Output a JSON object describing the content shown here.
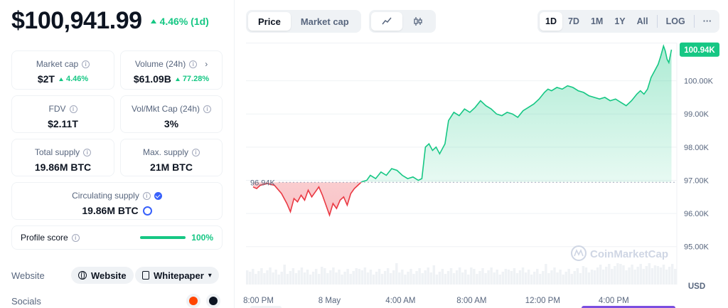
{
  "header": {
    "price": "$100,941.99",
    "change": "4.46% (1d)"
  },
  "stats": {
    "market_cap": {
      "label": "Market cap",
      "value": "$2T",
      "change": "4.46%"
    },
    "volume": {
      "label": "Volume (24h)",
      "value": "$61.09B",
      "change": "77.28%"
    },
    "fdv": {
      "label": "FDV",
      "value": "$2.11T"
    },
    "vol_mkt_cap": {
      "label": "Vol/Mkt Cap (24h)",
      "value": "3%"
    },
    "total_supply": {
      "label": "Total supply",
      "value": "19.86M BTC"
    },
    "max_supply": {
      "label": "Max. supply",
      "value": "21M BTC"
    },
    "circulating_supply": {
      "label": "Circulating supply",
      "value": "19.86M BTC"
    }
  },
  "profile_score": {
    "label": "Profile score",
    "value": "100%",
    "fraction": 1.0
  },
  "links": {
    "website_label": "Website",
    "website_button": "Website",
    "whitepaper_button": "Whitepaper",
    "socials_label": "Socials",
    "social_icons": [
      "reddit-icon",
      "github-icon"
    ]
  },
  "toolbar": {
    "view_tabs": [
      {
        "label": "Price",
        "active": true
      },
      {
        "label": "Market cap",
        "active": false
      }
    ],
    "chart_type_icons": [
      "line-chart-icon",
      "candlestick-icon"
    ],
    "ranges": [
      "1D",
      "7D",
      "1M",
      "1Y",
      "All"
    ],
    "active_range": "1D",
    "log_label": "LOG",
    "more_label": "···"
  },
  "colors": {
    "up": "#16c784",
    "down": "#ea3943",
    "accent": "#3861fb",
    "text_secondary": "#58667e"
  },
  "chart_data": {
    "type": "area",
    "currency_label": "USD",
    "watermark": "CoinMarketCap",
    "baseline": {
      "value": 96940,
      "label": "96.94K"
    },
    "current": {
      "value": 100940,
      "label": "100.94K"
    },
    "ylim": [
      94500,
      101150
    ],
    "y_ticks": [
      {
        "value": 95000,
        "label": "95.00K"
      },
      {
        "value": 96000,
        "label": "96.00K"
      },
      {
        "value": 97000,
        "label": "97.00K"
      },
      {
        "value": 98000,
        "label": "98.00K"
      },
      {
        "value": 99000,
        "label": "99.00K"
      },
      {
        "value": 100000,
        "label": "100.00K"
      }
    ],
    "x_ticks": [
      {
        "t": 0.7,
        "label": "8:00 PM"
      },
      {
        "t": 4.7,
        "label": "8 May"
      },
      {
        "t": 8.7,
        "label": "4:00 AM"
      },
      {
        "t": 12.7,
        "label": "8:00 AM"
      },
      {
        "t": 16.7,
        "label": "12:00 PM"
      },
      {
        "t": 20.7,
        "label": "4:00 PM"
      }
    ],
    "x_range_hours": [
      0,
      24.25
    ],
    "series": [
      {
        "points": [
          [
            0.4,
            96800
          ],
          [
            0.6,
            96750
          ],
          [
            0.8,
            96850
          ],
          [
            1.2,
            96900
          ],
          [
            1.6,
            96850
          ],
          [
            2.0,
            96600
          ],
          [
            2.3,
            96300
          ],
          [
            2.5,
            96050
          ],
          [
            2.7,
            96450
          ],
          [
            2.9,
            96350
          ],
          [
            3.1,
            96550
          ],
          [
            3.3,
            96400
          ],
          [
            3.5,
            96700
          ],
          [
            3.7,
            96500
          ],
          [
            3.9,
            96650
          ],
          [
            4.1,
            96800
          ],
          [
            4.3,
            96550
          ],
          [
            4.5,
            96250
          ],
          [
            4.7,
            95950
          ],
          [
            4.9,
            96300
          ],
          [
            5.1,
            96150
          ],
          [
            5.3,
            96400
          ],
          [
            5.5,
            96500
          ],
          [
            5.7,
            96250
          ],
          [
            5.9,
            96600
          ],
          [
            6.1,
            96750
          ],
          [
            6.3,
            96850
          ],
          [
            6.5,
            96950
          ],
          [
            6.8,
            97000
          ],
          [
            7.0,
            97150
          ],
          [
            7.3,
            97050
          ],
          [
            7.6,
            97250
          ],
          [
            7.9,
            97150
          ],
          [
            8.2,
            97350
          ],
          [
            8.5,
            97300
          ],
          [
            8.8,
            97150
          ],
          [
            9.1,
            97050
          ],
          [
            9.4,
            97100
          ],
          [
            9.7,
            97000
          ],
          [
            9.9,
            97050
          ],
          [
            10.1,
            98000
          ],
          [
            10.3,
            98100
          ],
          [
            10.5,
            97900
          ],
          [
            10.7,
            98000
          ],
          [
            10.9,
            97800
          ],
          [
            11.2,
            98100
          ],
          [
            11.4,
            98800
          ],
          [
            11.7,
            99050
          ],
          [
            12.0,
            98950
          ],
          [
            12.3,
            99150
          ],
          [
            12.6,
            99050
          ],
          [
            12.9,
            99200
          ],
          [
            13.2,
            99400
          ],
          [
            13.5,
            99250
          ],
          [
            13.8,
            99150
          ],
          [
            14.1,
            99000
          ],
          [
            14.4,
            98950
          ],
          [
            14.7,
            99050
          ],
          [
            15.0,
            99000
          ],
          [
            15.3,
            98900
          ],
          [
            15.6,
            99100
          ],
          [
            15.9,
            99200
          ],
          [
            16.2,
            99300
          ],
          [
            16.5,
            99450
          ],
          [
            16.8,
            99650
          ],
          [
            17.0,
            99750
          ],
          [
            17.2,
            99700
          ],
          [
            17.5,
            99800
          ],
          [
            17.8,
            99750
          ],
          [
            18.1,
            99850
          ],
          [
            18.4,
            99800
          ],
          [
            18.7,
            99700
          ],
          [
            19.0,
            99650
          ],
          [
            19.3,
            99550
          ],
          [
            19.6,
            99500
          ],
          [
            19.9,
            99450
          ],
          [
            20.2,
            99500
          ],
          [
            20.5,
            99400
          ],
          [
            20.8,
            99450
          ],
          [
            21.1,
            99350
          ],
          [
            21.4,
            99250
          ],
          [
            21.7,
            99400
          ],
          [
            22.0,
            99600
          ],
          [
            22.2,
            99700
          ],
          [
            22.4,
            99600
          ],
          [
            22.6,
            99750
          ],
          [
            22.8,
            100100
          ],
          [
            23.0,
            100300
          ],
          [
            23.2,
            100500
          ],
          [
            23.35,
            100750
          ],
          [
            23.5,
            101050
          ],
          [
            23.6,
            100900
          ],
          [
            23.7,
            100650
          ],
          [
            23.8,
            100550
          ],
          [
            23.95,
            100940
          ]
        ]
      }
    ]
  }
}
